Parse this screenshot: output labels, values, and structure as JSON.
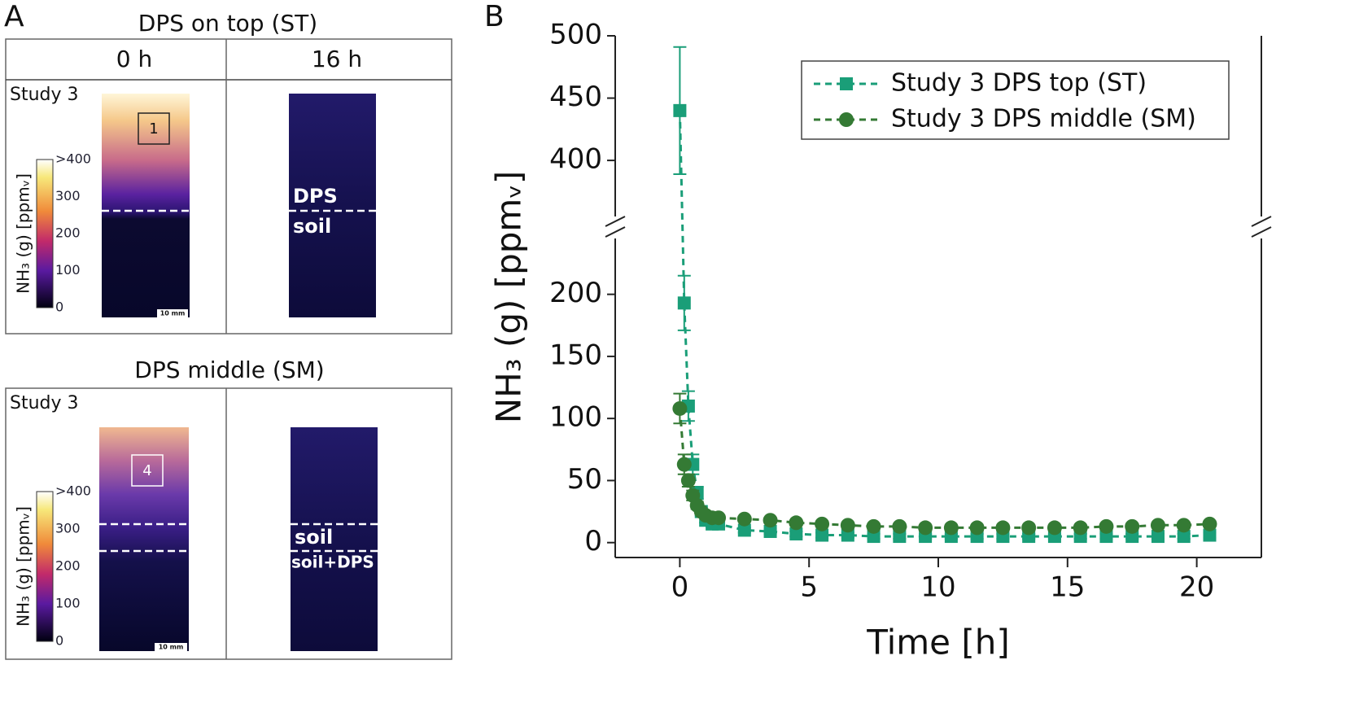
{
  "panel_a": {
    "label": "A",
    "colorbar_label": "NH₃ (g) [ppmᵥ]",
    "colorbar_ticks": [
      ">400",
      "300",
      "200",
      "100",
      "0"
    ],
    "scale_bar": "10 mm",
    "groups": [
      {
        "title": "DPS on top (ST)",
        "columns": [
          "0 h",
          "16 h"
        ],
        "study": "Study 3",
        "roi": "1",
        "layers": [
          "DPS",
          "soil"
        ]
      },
      {
        "title": "DPS middle (SM)",
        "study": "Study 3",
        "roi": "4",
        "layers": [
          "soil",
          "soil+DPS"
        ]
      }
    ]
  },
  "chart_data": {
    "type": "line",
    "panel_label": "B",
    "xlabel": "Time [h]",
    "ylabel": "NH₃ (g) [ppmᵥ]",
    "x": [
      0,
      0.17,
      0.33,
      0.5,
      0.67,
      0.83,
      1,
      1.25,
      1.5,
      2.5,
      3.5,
      4.5,
      5.5,
      6.5,
      7.5,
      8.5,
      9.5,
      10.5,
      11.5,
      12.5,
      13.5,
      14.5,
      15.5,
      16.5,
      17.5,
      18.5,
      19.5,
      20.5
    ],
    "xlim": [
      -2.5,
      22.5
    ],
    "xticks": [
      0,
      5,
      10,
      15,
      20
    ],
    "y_segments": [
      {
        "ylim": [
          -12,
          245
        ],
        "yticks": [
          0,
          50,
          100,
          150,
          200
        ]
      },
      {
        "ylim": [
          355,
          500
        ],
        "yticks": [
          400,
          450,
          500
        ]
      }
    ],
    "legend": "upper right",
    "series": [
      {
        "name": "Study 3 DPS top (ST)",
        "color": "#1a9e78",
        "marker": "square",
        "values": [
          440,
          193,
          110,
          63,
          40,
          25,
          18,
          15,
          15,
          10,
          9,
          7,
          6,
          6,
          5,
          5,
          5,
          5,
          5,
          5,
          5,
          5,
          5,
          5,
          5,
          5,
          5,
          6
        ],
        "errors": [
          51,
          22,
          12,
          8,
          5,
          3,
          2,
          2,
          2,
          2,
          2,
          2,
          2,
          2,
          2,
          2,
          2,
          2,
          2,
          2,
          2,
          2,
          2,
          2,
          2,
          2,
          2,
          2
        ]
      },
      {
        "name": "Study 3 DPS middle (SM)",
        "color": "#347a34",
        "marker": "circle",
        "values": [
          108,
          63,
          50,
          38,
          30,
          25,
          22,
          20,
          20,
          19,
          18,
          16,
          15,
          14,
          13,
          13,
          12,
          12,
          12,
          12,
          12,
          12,
          12,
          13,
          13,
          14,
          14,
          15
        ],
        "errors": [
          12,
          8,
          5,
          4,
          3,
          2,
          2,
          2,
          2,
          2,
          2,
          2,
          2,
          2,
          2,
          2,
          2,
          2,
          2,
          2,
          2,
          2,
          2,
          2,
          2,
          2,
          2,
          2
        ]
      }
    ]
  }
}
